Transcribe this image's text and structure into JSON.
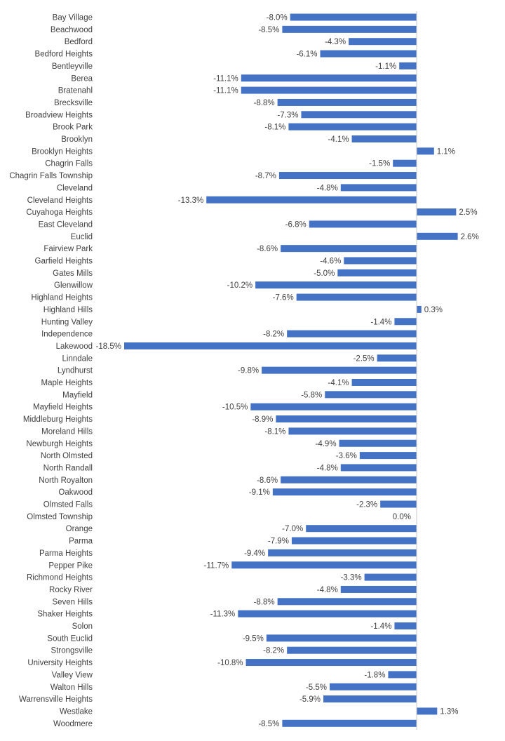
{
  "chart_data": {
    "type": "bar",
    "orientation": "horizontal",
    "title": "",
    "xlabel": "",
    "ylabel": "",
    "xlim": [
      -18.5,
      2.6
    ],
    "grid": false,
    "legend": "none",
    "bar_color": "#4472c4",
    "value_format": "percent-1dp",
    "categories": [
      "Bay Village",
      "Beachwood",
      "Bedford",
      "Bedford Heights",
      "Bentleyville",
      "Berea",
      "Bratenahl",
      "Brecksville",
      "Broadview Heights",
      "Brook Park",
      "Brooklyn",
      "Brooklyn Heights",
      "Chagrin Falls",
      "Chagrin Falls Township",
      "Cleveland",
      "Cleveland Heights",
      "Cuyahoga Heights",
      "East Cleveland",
      "Euclid",
      "Fairview Park",
      "Garfield Heights",
      "Gates Mills",
      "Glenwillow",
      "Highland Heights",
      "Highland Hills",
      "Hunting Valley",
      "Independence",
      "Lakewood",
      "Linndale",
      "Lyndhurst",
      "Maple Heights",
      "Mayfield",
      "Mayfield Heights",
      "Middleburg Heights",
      "Moreland Hills",
      "Newburgh Heights",
      "North Olmsted",
      "North Randall",
      "North Royalton",
      "Oakwood",
      "Olmsted Falls",
      "Olmsted Township",
      "Orange",
      "Parma",
      "Parma Heights",
      "Pepper Pike",
      "Richmond Heights",
      "Rocky River",
      "Seven Hills",
      "Shaker Heights",
      "Solon",
      "South Euclid",
      "Strongsville",
      "University Heights",
      "Valley View",
      "Walton Hills",
      "Warrensville Heights",
      "Westlake",
      "Woodmere"
    ],
    "values": [
      -8.0,
      -8.5,
      -4.3,
      -6.1,
      -1.1,
      -11.1,
      -11.1,
      -8.8,
      -7.3,
      -8.1,
      -4.1,
      1.1,
      -1.5,
      -8.7,
      -4.8,
      -13.3,
      2.5,
      -6.8,
      2.6,
      -8.6,
      -4.6,
      -5.0,
      -10.2,
      -7.6,
      0.3,
      -1.4,
      -8.2,
      -18.5,
      -2.5,
      -9.8,
      -4.1,
      -5.8,
      -10.5,
      -8.9,
      -8.1,
      -4.9,
      -3.6,
      -4.8,
      -8.6,
      -9.1,
      -2.3,
      0.0,
      -7.0,
      -7.9,
      -9.4,
      -11.7,
      -3.3,
      -4.8,
      -8.8,
      -11.3,
      -1.4,
      -9.5,
      -8.2,
      -10.8,
      -1.8,
      -5.5,
      -5.9,
      1.3,
      -8.5
    ]
  }
}
